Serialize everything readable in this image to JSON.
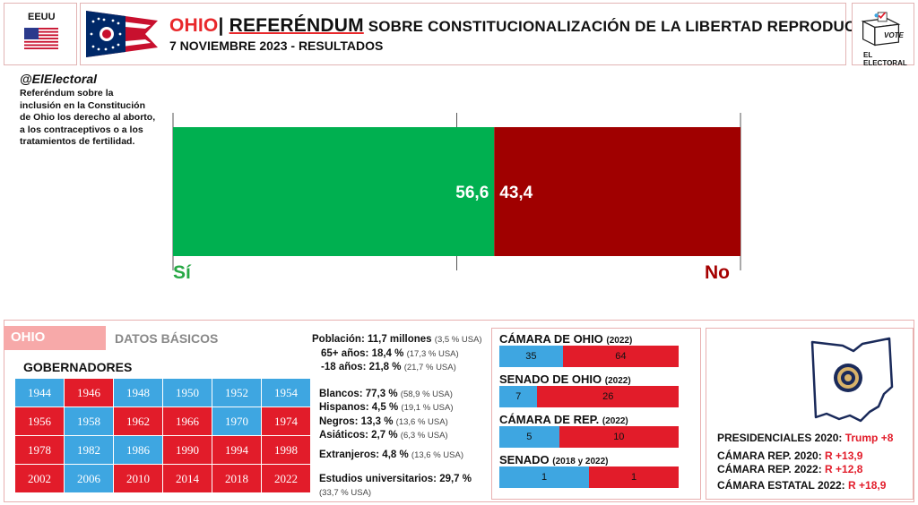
{
  "header": {
    "country_label": "EEUU",
    "state": "OHIO",
    "separator": "|",
    "title_ref": "REFERÉNDUM",
    "title_rest": " SOBRE CONSTITUCIONALIZACIÓN  DE LA LIBERTAD REPRODUCTIVA",
    "subtitle": "7 NOVIEMBRE 2023 - RESULTADOS",
    "logo_vote": "VOTE",
    "logo_text": "EL ELECTORAL"
  },
  "source": "@ElElectoral",
  "description": "Referéndum sobre la inclusión en la Constitución de Ohio los derecho al aborto, a los contraceptivos o a los tratamientos de fertilidad.",
  "chart_data": {
    "type": "bar",
    "orientation": "horizontal-stacked",
    "categories": [
      "Sí",
      "No"
    ],
    "values": [
      56.6,
      43.4
    ],
    "data_labels": [
      "56,6",
      "43,4"
    ],
    "colors": [
      "#00b050",
      "#a00000"
    ],
    "xlim": [
      0,
      100
    ],
    "gridlines": [
      0,
      50,
      100
    ]
  },
  "bottom": {
    "state_tag": "OHIO",
    "basic_data": "DATOS BÁSICOS",
    "governors_title": "GOBERNADORES",
    "governors": [
      {
        "year": "1944",
        "party": "D"
      },
      {
        "year": "1946",
        "party": "R"
      },
      {
        "year": "1948",
        "party": "D"
      },
      {
        "year": "1950",
        "party": "D"
      },
      {
        "year": "1952",
        "party": "D"
      },
      {
        "year": "1954",
        "party": "D"
      },
      {
        "year": "1956",
        "party": "R"
      },
      {
        "year": "1958",
        "party": "D"
      },
      {
        "year": "1962",
        "party": "R"
      },
      {
        "year": "1966",
        "party": "R"
      },
      {
        "year": "1970",
        "party": "D"
      },
      {
        "year": "1974",
        "party": "R"
      },
      {
        "year": "1978",
        "party": "R"
      },
      {
        "year": "1982",
        "party": "D"
      },
      {
        "year": "1986",
        "party": "D"
      },
      {
        "year": "1990",
        "party": "R"
      },
      {
        "year": "1994",
        "party": "R"
      },
      {
        "year": "1998",
        "party": "R"
      },
      {
        "year": "2002",
        "party": "R"
      },
      {
        "year": "2006",
        "party": "D"
      },
      {
        "year": "2010",
        "party": "R"
      },
      {
        "year": "2014",
        "party": "R"
      },
      {
        "year": "2018",
        "party": "R"
      },
      {
        "year": "2022",
        "party": "R"
      }
    ],
    "demographics": {
      "poblacion": "Población: 11,7 millones",
      "poblacion_cmp": "(3,5 % USA)",
      "mayores": "65+ años: 18,4 %",
      "mayores_cmp": "(17,3 % USA)",
      "menores": "-18 años: 21,8 %",
      "menores_cmp": "(21,7 % USA)",
      "blancos": "Blancos: 77,3 %",
      "blancos_cmp": "(58,9 % USA)",
      "hispanos": "Hispanos: 4,5 %",
      "hispanos_cmp": "(19,1 % USA)",
      "negros": "Negros: 13,3 %",
      "negros_cmp": "(13,6 % USA)",
      "asiaticos": "Asiáticos: 2,7 %",
      "asiaticos_cmp": "(6,3 % USA)",
      "extranjeros": "Extranjeros: 4,8 %",
      "extranjeros_cmp": "(13,6 % USA)",
      "estudios": "Estudios universitarios: 29,7 %",
      "estudios_cmp": "(33,7 % USA)"
    },
    "legislatures": [
      {
        "name": "CÁMARA DE OHIO",
        "year": "(2022)",
        "d": 35,
        "r": 64
      },
      {
        "name": "SENADO DE OHIO",
        "year": "(2022)",
        "d": 7,
        "r": 26
      },
      {
        "name": "CÁMARA DE REP.",
        "year": "(2022)",
        "d": 5,
        "r": 10
      },
      {
        "name": "SENADO",
        "year": "(2018 y 2022)",
        "d": 1,
        "r": 1
      }
    ],
    "results": [
      {
        "label": "PRESIDENCIALES 2020: ",
        "value": "Trump +8"
      },
      {
        "label": "CÁMARA REP. 2020: ",
        "value": "R +13,9"
      },
      {
        "label": "CÁMARA REP. 2022: ",
        "value": "R +12,8"
      },
      {
        "label": "CÁMARA ESTATAL 2022: ",
        "value": "R +18,9"
      }
    ]
  }
}
